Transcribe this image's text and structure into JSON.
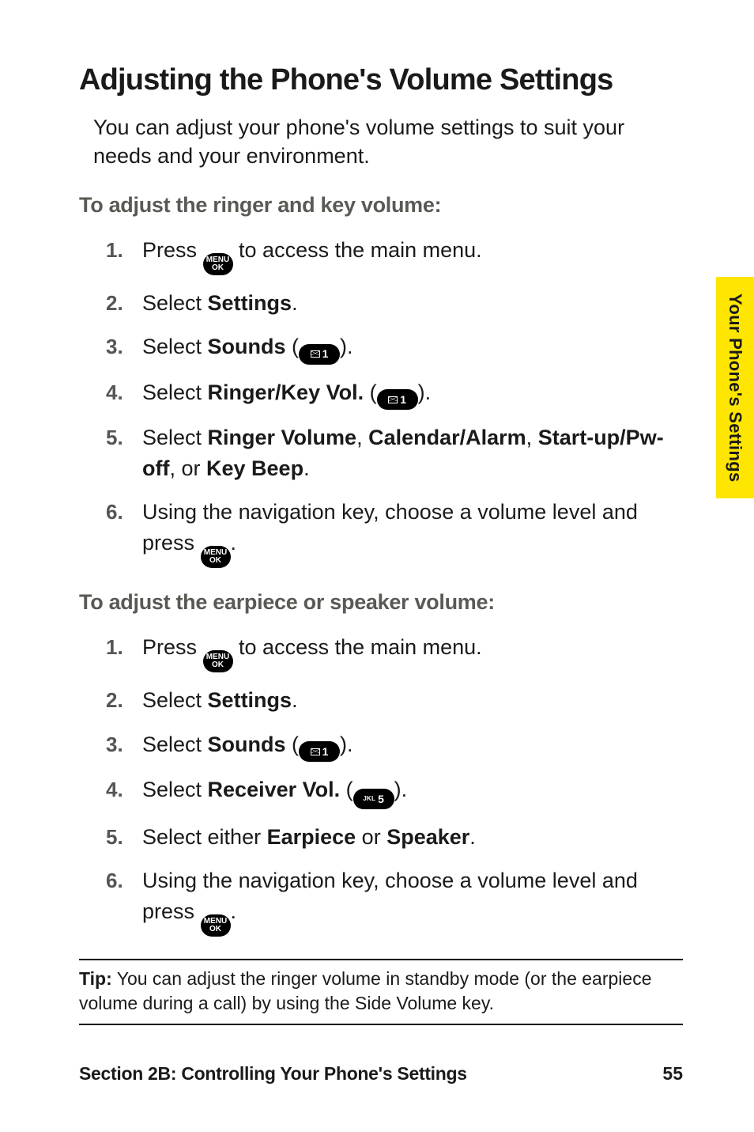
{
  "sideTab": "Your Phone's Settings",
  "heading": "Adjusting the Phone's Volume Settings",
  "intro": "You can adjust your phone's volume settings to suit your needs and your environment.",
  "lead1": "To adjust the ringer and key volume:",
  "s1": {
    "n1": "1.",
    "t1a": "Press ",
    "t1b": " to access the main menu.",
    "n2": "2.",
    "t2a": "Select ",
    "t2b": "Settings",
    "t2c": ".",
    "n3": "3.",
    "t3a": "Select ",
    "t3b": "Sounds",
    "t3c": " (",
    "t3d": ").",
    "n4": "4.",
    "t4a": "Select ",
    "t4b": "Ringer/Key Vol.",
    "t4c": " (",
    "t4d": ").",
    "n5": "5.",
    "t5a": "Select ",
    "t5b": "Ringer Volume",
    "t5c": ", ",
    "t5d": "Calendar/Alarm",
    "t5e": ", ",
    "t5f": "Start-up/Pw-off",
    "t5g": ", or ",
    "t5h": "Key Beep",
    "t5i": ".",
    "n6": "6.",
    "t6a": "Using the navigation key, choose a volume level and press ",
    "t6b": "."
  },
  "lead2": "To adjust the earpiece or speaker volume:",
  "s2": {
    "n1": "1.",
    "t1a": "Press ",
    "t1b": " to access the main menu.",
    "n2": "2.",
    "t2a": "Select ",
    "t2b": "Settings",
    "t2c": ".",
    "n3": "3.",
    "t3a": "Select ",
    "t3b": "Sounds",
    "t3c": " (",
    "t3d": ").",
    "n4": "4.",
    "t4a": "Select ",
    "t4b": "Receiver Vol.",
    "t4c": " (",
    "t4d": ").",
    "n5": "5.",
    "t5a": "Select either ",
    "t5b": "Earpiece",
    "t5c": " or ",
    "t5d": "Speaker",
    "t5e": ".",
    "n6": "6.",
    "t6a": "Using the navigation key, choose a volume level and press ",
    "t6b": "."
  },
  "tipLabel": "Tip:",
  "tipBody": " You can adjust the ringer volume in standby mode (or the earpiece volume during a call) by using the Side Volume key.",
  "footerSection": "Section 2B: Controlling Your Phone's Settings",
  "pageNumber": "55",
  "iconMenuTop": "MENU",
  "iconMenuBot": "OK",
  "key1digit": "1",
  "key5jkl": "JKL",
  "key5digit": "5",
  "colors": {
    "tabBg": "#ffe600",
    "text": "#1a1a1a",
    "lead": "#5a5a55",
    "num": "#555555",
    "iconBg": "#000000",
    "iconFg": "#ffffff"
  }
}
